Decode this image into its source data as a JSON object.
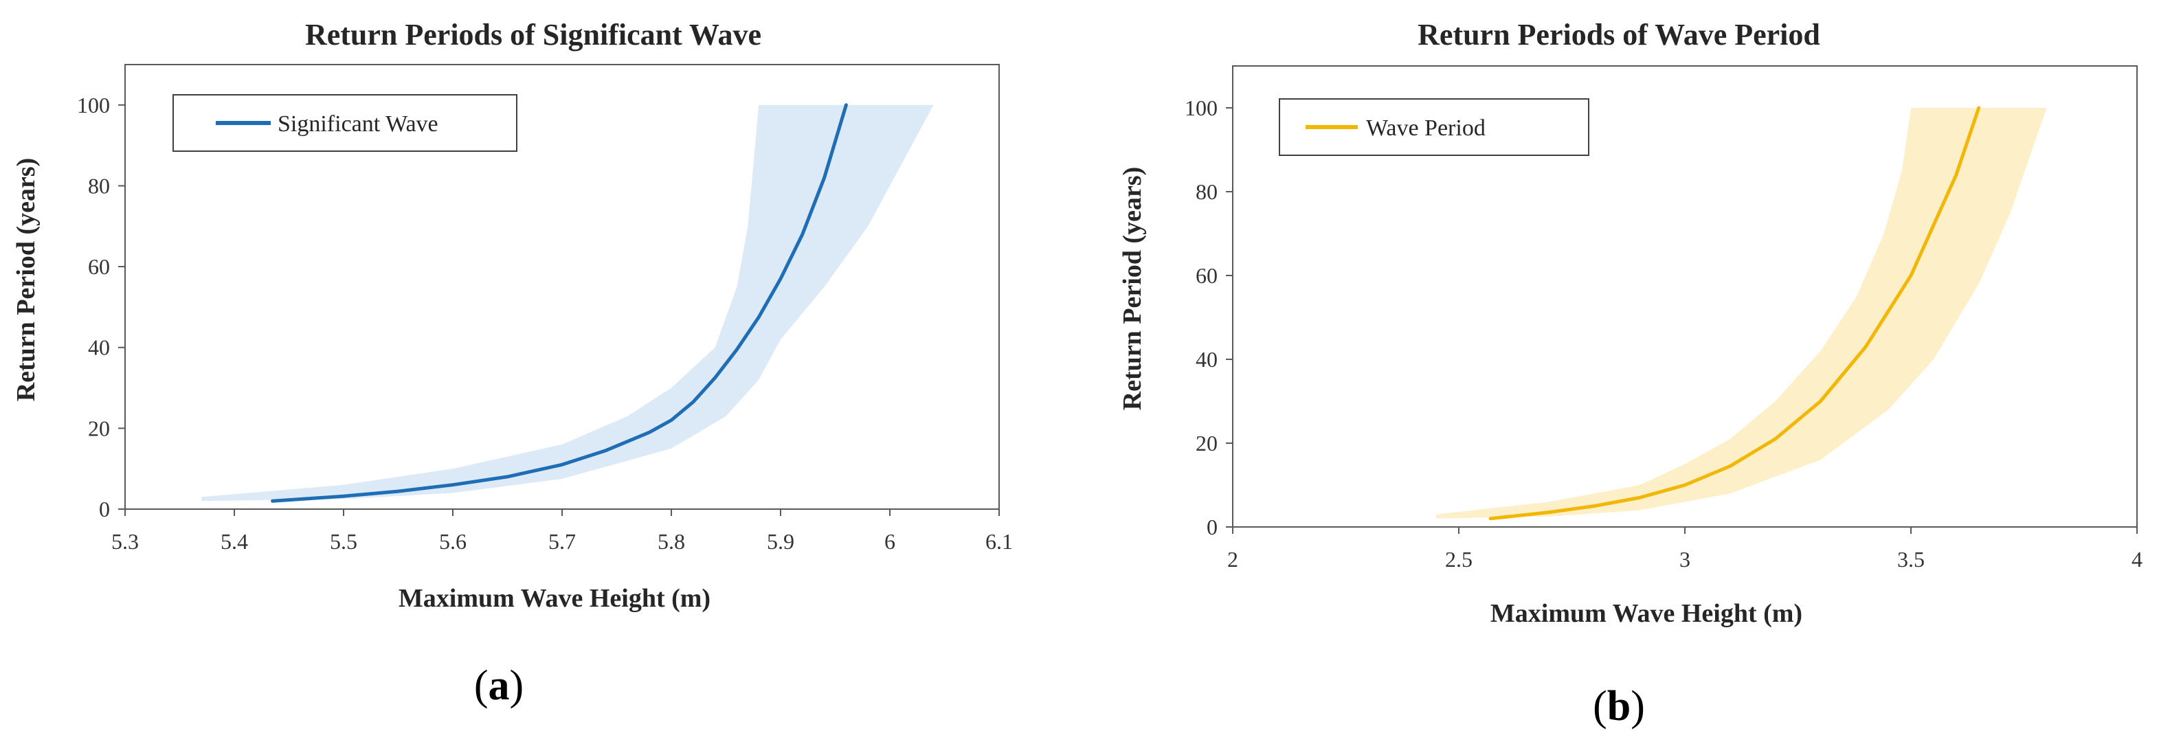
{
  "chart_data": [
    {
      "type": "line",
      "title": "Return Periods of Significant Wave",
      "xlabel": "Maximum Wave Height (m)",
      "ylabel": "Return Period (years)",
      "xlim": [
        5.3,
        6.1
      ],
      "ylim": [
        0,
        110
      ],
      "xticks": [
        5.3,
        5.4,
        5.5,
        5.6,
        5.7,
        5.8,
        5.9,
        6,
        6.1
      ],
      "xtick_labels": [
        "5.3",
        "5.4",
        "5.5",
        "5.6",
        "5.7",
        "5.8",
        "5.9",
        "6",
        "6.1"
      ],
      "yticks": [
        0,
        20,
        40,
        60,
        80,
        100
      ],
      "ytick_labels": [
        "0",
        "20",
        "40",
        "60",
        "80",
        "100"
      ],
      "legend": [
        "Significant Wave"
      ],
      "legend_position": "top-left",
      "panel_label": "a",
      "series": [
        {
          "name": "Significant Wave",
          "color": "#1f6db5",
          "band_color": "#dce9f6",
          "x": [
            5.435,
            5.5,
            5.55,
            5.6,
            5.65,
            5.7,
            5.74,
            5.78,
            5.8,
            5.82,
            5.84,
            5.86,
            5.88,
            5.9,
            5.92,
            5.94,
            5.96
          ],
          "y": [
            2,
            3.2,
            4.4,
            6,
            8,
            11,
            14.5,
            19,
            22,
            26.5,
            32.5,
            39.5,
            47.5,
            57,
            68,
            82,
            100
          ],
          "band_lower": {
            "x": [
              5.37,
              5.5,
              5.6,
              5.7,
              5.8,
              5.85,
              5.88,
              5.9,
              5.94,
              5.98,
              6.01,
              6.04
            ],
            "y": [
              2,
              2.5,
              4,
              7.5,
              15,
              23,
              32,
              42,
              55,
              70,
              85,
              100
            ]
          },
          "band_upper": {
            "x": [
              5.37,
              5.5,
              5.6,
              5.7,
              5.76,
              5.8,
              5.84,
              5.86,
              5.87,
              5.875,
              5.88
            ],
            "y": [
              3,
              6,
              10,
              16,
              23,
              30,
              40,
              55,
              70,
              85,
              100
            ]
          }
        }
      ]
    },
    {
      "type": "line",
      "title": "Return Periods of Wave Period",
      "xlabel": "Maximum Wave Height (m)",
      "ylabel": "Return Period (years)",
      "xlim": [
        2,
        4
      ],
      "ylim": [
        0,
        110
      ],
      "xticks": [
        2,
        2.5,
        3,
        3.5,
        4
      ],
      "xtick_labels": [
        "2",
        "2.5",
        "3",
        "3.5",
        "4"
      ],
      "yticks": [
        0,
        20,
        40,
        60,
        80,
        100
      ],
      "ytick_labels": [
        "0",
        "20",
        "40",
        "60",
        "80",
        "100"
      ],
      "legend": [
        "Wave Period"
      ],
      "legend_position": "top-left",
      "panel_label": "b",
      "series": [
        {
          "name": "Wave Period",
          "color": "#f2b705",
          "band_color": "#fdefc8",
          "x": [
            2.57,
            2.7,
            2.8,
            2.9,
            3.0,
            3.1,
            3.2,
            3.3,
            3.4,
            3.5,
            3.6,
            3.65
          ],
          "y": [
            2,
            3.5,
            5,
            7,
            10,
            14.5,
            21,
            30,
            43,
            60,
            84,
            100
          ],
          "band_lower": {
            "x": [
              2.45,
              2.7,
              2.9,
              3.1,
              3.3,
              3.45,
              3.55,
              3.65,
              3.72,
              3.8
            ],
            "y": [
              2,
              2.5,
              4,
              8,
              16,
              28,
              40,
              58,
              75,
              100
            ]
          },
          "band_upper": {
            "x": [
              2.45,
              2.7,
              2.9,
              3.0,
              3.1,
              3.2,
              3.3,
              3.38,
              3.44,
              3.48,
              3.5
            ],
            "y": [
              3,
              6,
              10,
              15,
              21,
              30,
              42,
              55,
              70,
              85,
              100
            ]
          }
        }
      ]
    }
  ]
}
